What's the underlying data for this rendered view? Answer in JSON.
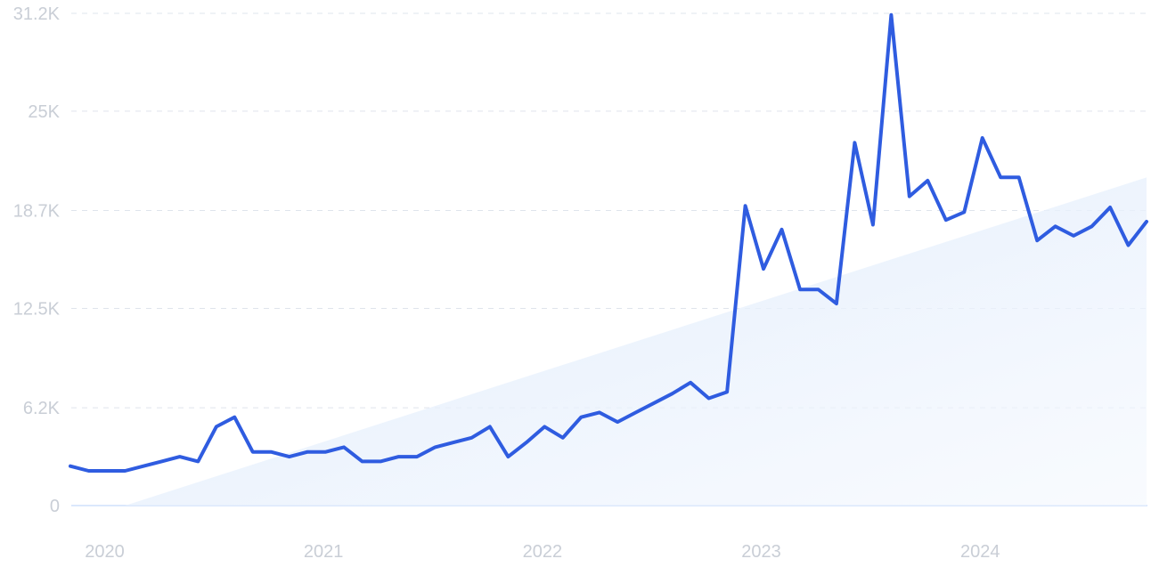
{
  "chart_data": {
    "type": "line",
    "title": "",
    "xlabel": "",
    "ylabel": "",
    "y_ticks": [
      0,
      6200,
      12500,
      18700,
      25000,
      31200
    ],
    "y_tick_labels": [
      "0",
      "6.2K",
      "12.5K",
      "18.7K",
      "25K",
      "31.2K"
    ],
    "x_tick_labels": [
      "2020",
      "2021",
      "2022",
      "2023",
      "2024"
    ],
    "x_tick_dates": [
      "2020-01",
      "2021-01",
      "2022-01",
      "2023-01",
      "2024-01"
    ],
    "ylim": [
      0,
      31200
    ],
    "xlim": [
      "2019-12",
      "2024-11"
    ],
    "grid": true,
    "series_color": "#2f5ce0",
    "trend_color": "#dce9fb",
    "trend": {
      "x": [
        "2020-03",
        "2024-11"
      ],
      "y": [
        0,
        20800
      ]
    },
    "series": [
      {
        "x": [
          "2019-12",
          "2020-01",
          "2020-02",
          "2020-03",
          "2020-04",
          "2020-05",
          "2020-06",
          "2020-07",
          "2020-08",
          "2020-09",
          "2020-10",
          "2020-11",
          "2020-12",
          "2021-01",
          "2021-02",
          "2021-03",
          "2021-04",
          "2021-05",
          "2021-06",
          "2021-07",
          "2021-08",
          "2021-09",
          "2021-10",
          "2021-11",
          "2021-12",
          "2022-01",
          "2022-02",
          "2022-03",
          "2022-04",
          "2022-05",
          "2022-06",
          "2022-07",
          "2022-08",
          "2022-09",
          "2022-10",
          "2022-11",
          "2022-12",
          "2023-01",
          "2023-02",
          "2023-03",
          "2023-04",
          "2023-05",
          "2023-06",
          "2023-07",
          "2023-08",
          "2023-09",
          "2023-10",
          "2023-11",
          "2023-12",
          "2024-01",
          "2024-02",
          "2024-03",
          "2024-04",
          "2024-05",
          "2024-06",
          "2024-07",
          "2024-08",
          "2024-09",
          "2024-10",
          "2024-11"
        ],
        "values": [
          2500,
          2200,
          2200,
          2200,
          2500,
          2800,
          3100,
          2800,
          5000,
          5600,
          3400,
          3400,
          3100,
          3400,
          3400,
          3700,
          2800,
          2800,
          3100,
          3100,
          3700,
          4000,
          4300,
          5000,
          3100,
          4000,
          5000,
          4300,
          5600,
          5900,
          5300,
          5900,
          6500,
          7100,
          7800,
          6800,
          7200,
          19000,
          15000,
          17500,
          13700,
          13700,
          12800,
          23000,
          17800,
          31100,
          19600,
          20600,
          18100,
          18600,
          23300,
          20800,
          20800,
          16800,
          17700,
          17100,
          17700,
          18900,
          16500,
          18000
        ]
      }
    ]
  }
}
